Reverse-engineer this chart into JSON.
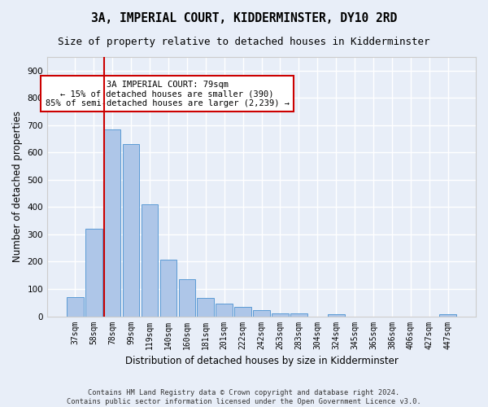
{
  "title": "3A, IMPERIAL COURT, KIDDERMINSTER, DY10 2RD",
  "subtitle": "Size of property relative to detached houses in Kidderminster",
  "xlabel": "Distribution of detached houses by size in Kidderminster",
  "ylabel": "Number of detached properties",
  "categories": [
    "37sqm",
    "58sqm",
    "78sqm",
    "99sqm",
    "119sqm",
    "140sqm",
    "160sqm",
    "181sqm",
    "201sqm",
    "222sqm",
    "242sqm",
    "263sqm",
    "283sqm",
    "304sqm",
    "324sqm",
    "345sqm",
    "365sqm",
    "386sqm",
    "406sqm",
    "427sqm",
    "447sqm"
  ],
  "values": [
    70,
    320,
    685,
    632,
    410,
    207,
    137,
    68,
    46,
    33,
    22,
    12,
    11,
    0,
    8,
    0,
    0,
    0,
    0,
    0,
    8
  ],
  "bar_color": "#aec6e8",
  "bar_edge_color": "#5b9bd5",
  "background_color": "#e8eef8",
  "grid_color": "#ffffff",
  "vline_x_index": 2,
  "vline_color": "#cc0000",
  "annotation_text": "3A IMPERIAL COURT: 79sqm\n← 15% of detached houses are smaller (390)\n85% of semi-detached houses are larger (2,239) →",
  "annotation_box_color": "#ffffff",
  "annotation_box_edge": "#cc0000",
  "ylim": [
    0,
    950
  ],
  "yticks": [
    0,
    100,
    200,
    300,
    400,
    500,
    600,
    700,
    800,
    900
  ],
  "footer1": "Contains HM Land Registry data © Crown copyright and database right 2024.",
  "footer2": "Contains public sector information licensed under the Open Government Licence v3.0.",
  "title_fontsize": 10.5,
  "subtitle_fontsize": 9,
  "label_fontsize": 8.5,
  "tick_fontsize": 7,
  "annot_fontsize": 7.5
}
